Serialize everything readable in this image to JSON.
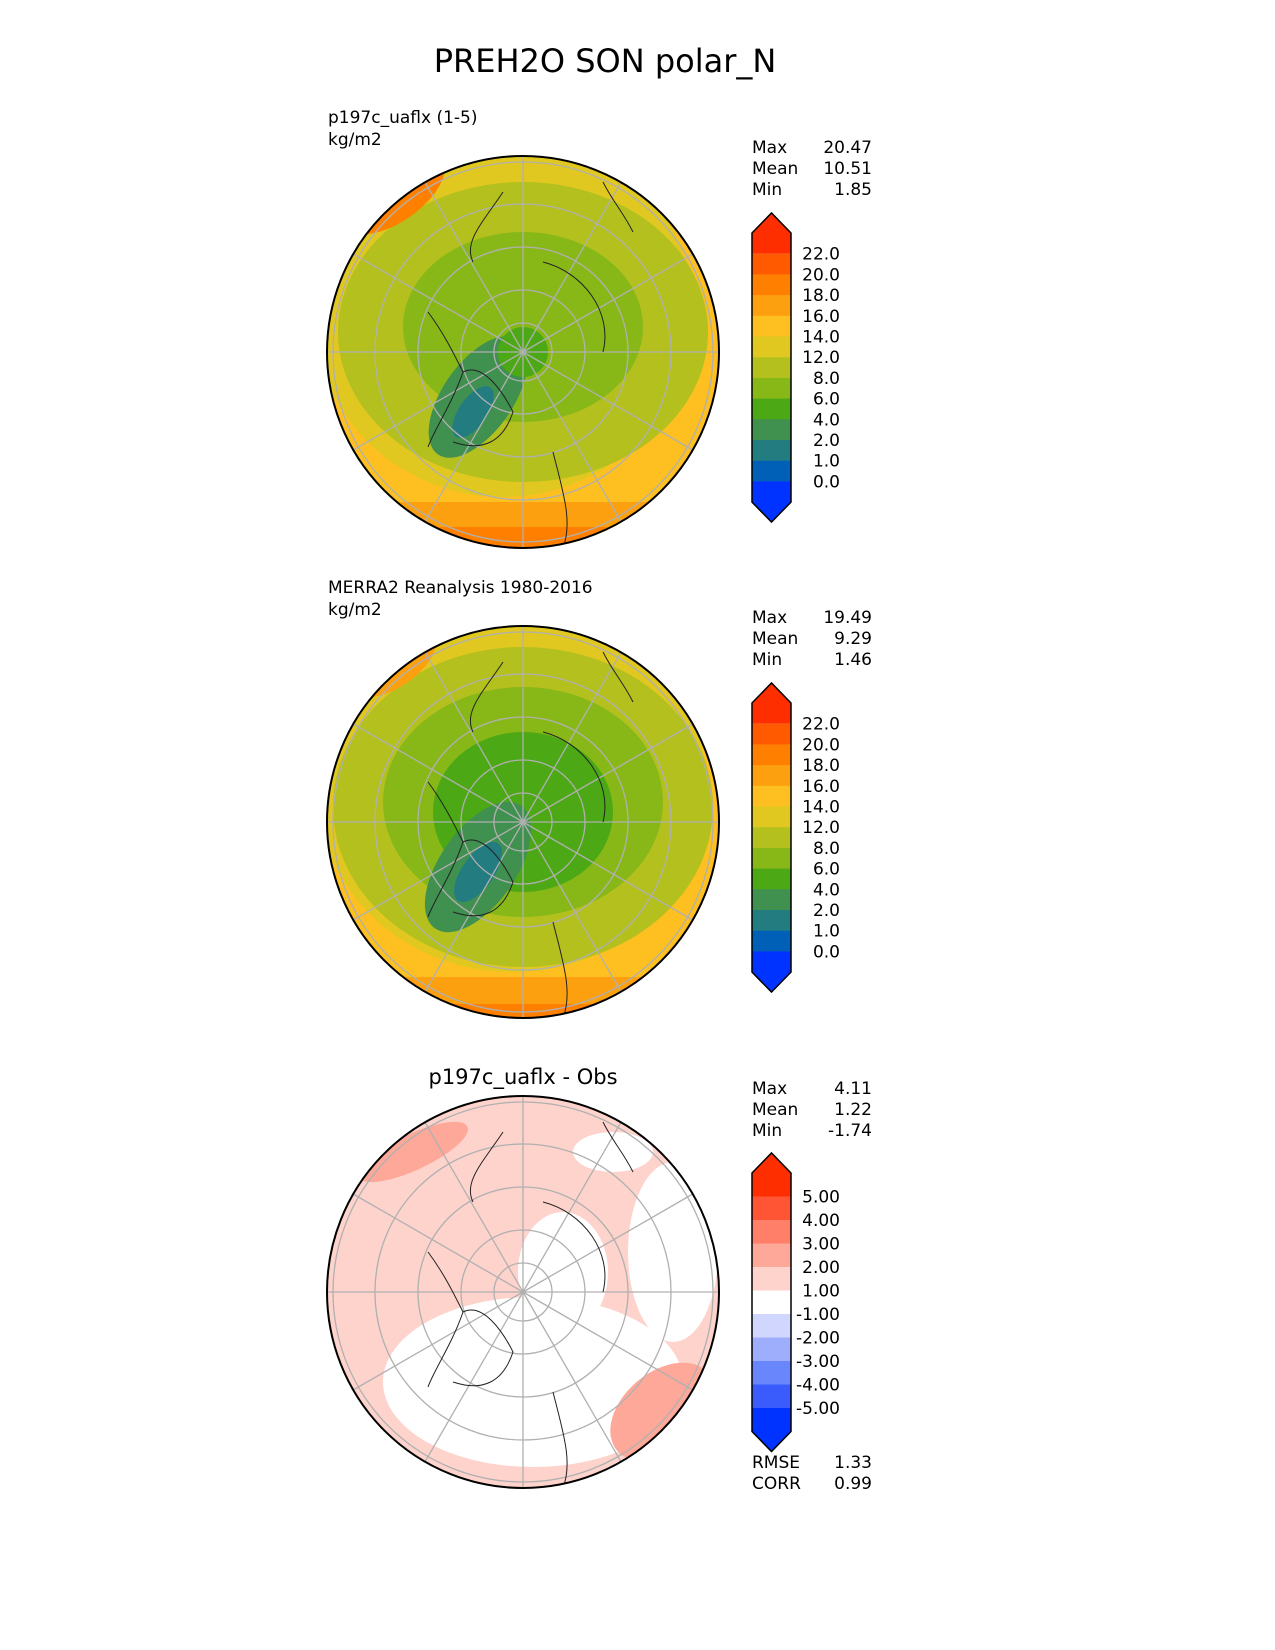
{
  "title": "PREH2O SON polar_N",
  "chart_data": {
    "type": "heatmap",
    "projection": "north-polar-stereographic",
    "title": "PREH2O SON polar_N",
    "panels": [
      {
        "label": "p197c_uaflx (1-5)",
        "units": "kg/m2",
        "stats": [
          {
            "name": "Max",
            "value": "20.47"
          },
          {
            "name": "Mean",
            "value": "10.51"
          },
          {
            "name": "Min",
            "value": "1.85"
          }
        ],
        "colorbar": {
          "ticks": [
            "22.0",
            "20.0",
            "18.0",
            "16.0",
            "14.0",
            "12.0",
            "8.0",
            "6.0",
            "4.0",
            "2.0",
            "1.0",
            "0.0"
          ],
          "colors": [
            "#ff2e00",
            "#ff5a00",
            "#ff8000",
            "#fda010",
            "#fdc020",
            "#e0c820",
            "#b4c01e",
            "#88b818",
            "#4ca814",
            "#409050",
            "#237c80",
            "#0060b8",
            "#0033ff"
          ]
        }
      },
      {
        "label": "MERRA2 Reanalysis 1980-2016",
        "units": "kg/m2",
        "stats": [
          {
            "name": "Max",
            "value": "19.49"
          },
          {
            "name": "Mean",
            "value": "9.29"
          },
          {
            "name": "Min",
            "value": "1.46"
          }
        ],
        "colorbar": {
          "ticks": [
            "22.0",
            "20.0",
            "18.0",
            "16.0",
            "14.0",
            "12.0",
            "8.0",
            "6.0",
            "4.0",
            "2.0",
            "1.0",
            "0.0"
          ],
          "colors": [
            "#ff2e00",
            "#ff5a00",
            "#ff8000",
            "#fda010",
            "#fdc020",
            "#e0c820",
            "#b4c01e",
            "#88b818",
            "#4ca814",
            "#409050",
            "#237c80",
            "#0060b8",
            "#0033ff"
          ]
        }
      },
      {
        "title": "p197c_uaflx - Obs",
        "stats": [
          {
            "name": "Max",
            "value": "4.11"
          },
          {
            "name": "Mean",
            "value": "1.22"
          },
          {
            "name": "Min",
            "value": "-1.74"
          }
        ],
        "colorbar": {
          "ticks": [
            "5.00",
            "4.00",
            "3.00",
            "2.00",
            "1.00",
            "-1.00",
            "-2.00",
            "-3.00",
            "-4.00",
            "-5.00"
          ],
          "colors": [
            "#ff2e00",
            "#ff5535",
            "#ff7f68",
            "#fda898",
            "#fdd3cc",
            "#ffffff",
            "#d0d6fd",
            "#9eaefc",
            "#6a86fc",
            "#3a5cfc",
            "#0033ff"
          ]
        },
        "metrics": [
          {
            "name": "RMSE",
            "value": "1.33"
          },
          {
            "name": "CORR",
            "value": "0.99"
          }
        ]
      }
    ]
  }
}
